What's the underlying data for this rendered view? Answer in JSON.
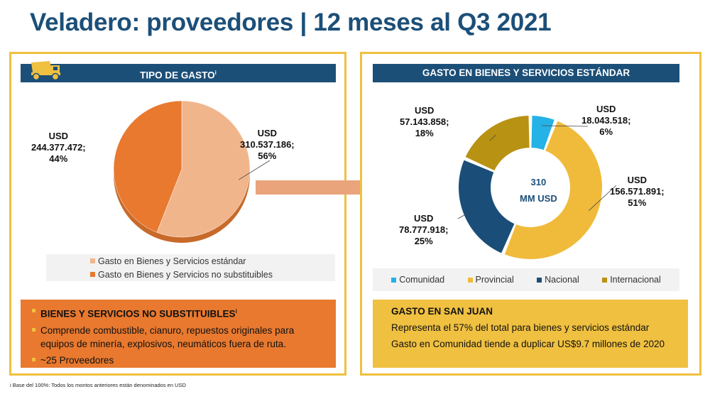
{
  "page": {
    "title": "Veladero: proveedores | 12 meses al Q3 2021",
    "footnote": "i Base del 100%: Todos los montos anteriores están denominados en USD"
  },
  "colors": {
    "navy": "#1c4f78",
    "gold": "#f0c040",
    "orange": "#e8792f",
    "peach": "#f1b58c",
    "cyan": "#25b2e6",
    "yellow": "#f0bb3b",
    "dark_blue": "#1a4e78",
    "olive": "#b89213"
  },
  "left": {
    "header": "TIPO DE GASTO",
    "header_sup": "i",
    "info": {
      "heading": "BIENES Y SERVICIOS NO SUBSTITUIBLES",
      "heading_sup": "i",
      "line1": "Comprende combustible, cianuro, repuestos originales para equipos de minería, explosivos, neumáticos fuera de ruta.",
      "line2": "~25 Proveedores"
    }
  },
  "right": {
    "header": "GASTO EN BIENES Y SERVICIOS ESTÁNDAR",
    "center_line1": "310",
    "center_line2": "MM USD",
    "info": {
      "heading": "GASTO EN SAN JUAN",
      "line1": "Representa el 57% del total para bienes y servicios estándar",
      "line2": "Gasto en Comunidad tiende a duplicar US$9.7 millones de 2020"
    }
  },
  "chart_data": [
    {
      "type": "pie",
      "title": "TIPO DE GASTO",
      "categories": [
        "Gasto en Bienes y Servicios estándar",
        "Gasto en Bienes y Servicios no substituibles"
      ],
      "values": [
        310537186,
        244377472
      ],
      "percents": [
        56,
        44
      ],
      "labels": [
        {
          "currency": "USD",
          "amount": "310.537.186;",
          "pct": "56%"
        },
        {
          "currency": "USD",
          "amount": "244.377.472;",
          "pct": "44%"
        }
      ],
      "colors": [
        "#f1b58c",
        "#e8792f"
      ],
      "legend_position": "bottom"
    },
    {
      "type": "pie",
      "subtype": "donut",
      "title": "GASTO EN BIENES Y SERVICIOS ESTÁNDAR",
      "categories": [
        "Comunidad",
        "Provincial",
        "Nacional",
        "Internacional"
      ],
      "values": [
        18043518,
        156571891,
        78777918,
        57143858
      ],
      "percents": [
        6,
        51,
        25,
        18
      ],
      "labels": [
        {
          "currency": "USD",
          "amount": "18.043.518;",
          "pct": "6%"
        },
        {
          "currency": "USD",
          "amount": "156.571.891;",
          "pct": "51%"
        },
        {
          "currency": "USD",
          "amount": "78.777.918;",
          "pct": "25%"
        },
        {
          "currency": "USD",
          "amount": "57.143.858;",
          "pct": "18%"
        }
      ],
      "colors": [
        "#25b2e6",
        "#f0bb3b",
        "#1a4e78",
        "#b89213"
      ],
      "legend_position": "bottom"
    }
  ]
}
